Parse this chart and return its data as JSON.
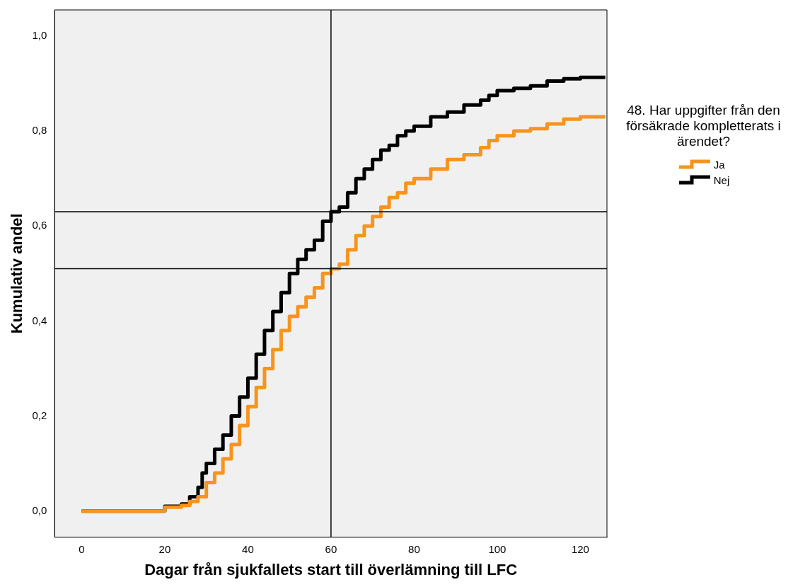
{
  "chart_data": {
    "type": "step",
    "xlabel": "Dagar från sjukfallets start till överlämning till LFC",
    "ylabel": "Kumulativ andel",
    "legend_title": "48. Har uppgifter från den försäkrade kompletterats i ärendet?",
    "legend": "right",
    "grid": false,
    "xlim": [
      -6.5,
      126.4
    ],
    "xticks": [
      0,
      20,
      40,
      60,
      80,
      100,
      120
    ],
    "ylim": [
      -0.055,
      1.055
    ],
    "yticks": [
      {
        "value": 0,
        "label": "0,0"
      },
      {
        "value": 0.2,
        "label": "0,2"
      },
      {
        "value": 0.4,
        "label": "0,4"
      },
      {
        "value": 0.6,
        "label": "0,6"
      },
      {
        "value": 0.8,
        "label": "0,8"
      },
      {
        "value": 1,
        "label": "1,0"
      }
    ],
    "ref_lines": [
      {
        "axis": "x",
        "value": 60,
        "color": "#000000"
      },
      {
        "axis": "y",
        "value": 0.63,
        "color": "#000000"
      },
      {
        "axis": "y",
        "value": 0.51,
        "color": "#000000"
      }
    ],
    "series": [
      {
        "name": "Ja",
        "color": "#f7941d",
        "x": [
          0,
          10,
          20,
          24,
          26,
          28,
          30,
          32,
          34,
          36,
          38,
          40,
          42,
          44,
          46,
          48,
          50,
          52,
          54,
          56,
          58,
          60,
          62,
          64,
          66,
          68,
          70,
          72,
          74,
          76,
          78,
          80,
          84,
          88,
          92,
          96,
          98,
          100,
          104,
          108,
          112,
          116,
          120,
          126
        ],
        "values": [
          0,
          0,
          0.008,
          0.012,
          0.02,
          0.03,
          0.06,
          0.08,
          0.11,
          0.14,
          0.18,
          0.22,
          0.26,
          0.3,
          0.34,
          0.38,
          0.41,
          0.43,
          0.45,
          0.47,
          0.5,
          0.51,
          0.52,
          0.55,
          0.58,
          0.6,
          0.62,
          0.64,
          0.66,
          0.67,
          0.69,
          0.7,
          0.72,
          0.74,
          0.75,
          0.765,
          0.78,
          0.79,
          0.8,
          0.805,
          0.815,
          0.825,
          0.83,
          0.83
        ]
      },
      {
        "name": "Nej",
        "color": "#000000",
        "x": [
          0,
          10,
          20,
          24,
          26,
          28,
          29,
          30,
          32,
          34,
          36,
          38,
          40,
          42,
          44,
          46,
          48,
          50,
          52,
          54,
          56,
          58,
          60,
          62,
          64,
          66,
          68,
          70,
          72,
          74,
          76,
          78,
          80,
          84,
          88,
          92,
          96,
          98,
          100,
          104,
          108,
          112,
          116,
          120,
          126
        ],
        "values": [
          0,
          0,
          0.01,
          0.015,
          0.03,
          0.05,
          0.08,
          0.1,
          0.13,
          0.16,
          0.2,
          0.24,
          0.28,
          0.33,
          0.38,
          0.42,
          0.46,
          0.5,
          0.53,
          0.55,
          0.57,
          0.61,
          0.63,
          0.64,
          0.67,
          0.7,
          0.72,
          0.74,
          0.76,
          0.77,
          0.79,
          0.8,
          0.81,
          0.83,
          0.84,
          0.855,
          0.865,
          0.875,
          0.885,
          0.89,
          0.895,
          0.905,
          0.91,
          0.913,
          0.913
        ]
      }
    ]
  }
}
